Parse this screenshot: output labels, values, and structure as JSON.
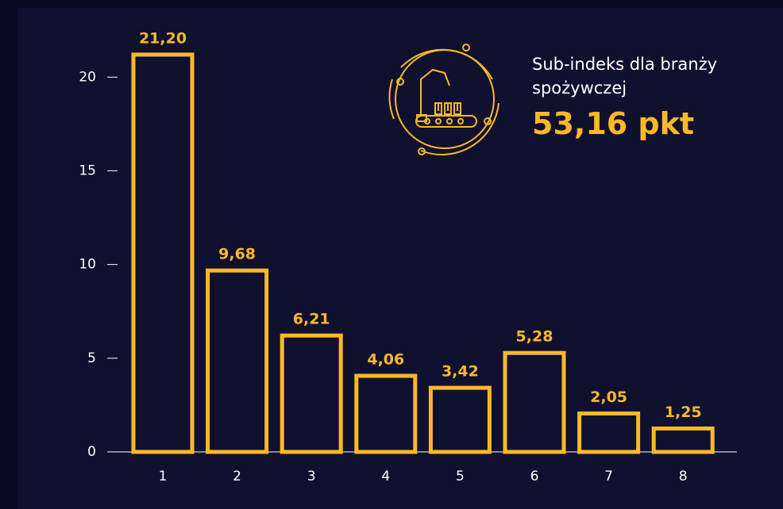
{
  "chart_data": {
    "type": "bar",
    "categories": [
      "1",
      "2",
      "3",
      "4",
      "5",
      "6",
      "7",
      "8"
    ],
    "values": [
      21.2,
      9.68,
      6.21,
      4.06,
      3.42,
      5.28,
      2.05,
      1.25
    ],
    "value_labels": [
      "21,20",
      "9,68",
      "6,21",
      "4,06",
      "3,42",
      "5,28",
      "2,05",
      "1,25"
    ],
    "color": "#fbb829",
    "ylim": [
      0,
      22
    ],
    "yticks": [
      0,
      5,
      10,
      15,
      20
    ],
    "grid": false,
    "annotation": {
      "text": "Sub-indeks dla branży spożywczej",
      "value": "53,16 pkt"
    }
  }
}
